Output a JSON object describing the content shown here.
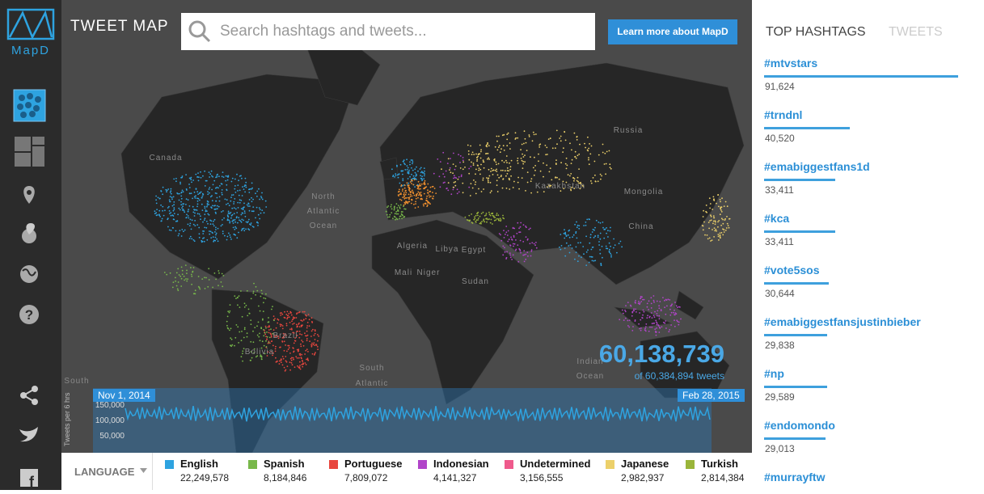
{
  "header": {
    "logo": "MapD",
    "title": "TWEET MAP",
    "search_placeholder": "Search hashtags and tweets...",
    "button": "Learn more about MapD"
  },
  "map_labels": [
    {
      "text": "Canada",
      "x": 205,
      "y": 198
    },
    {
      "text": "North",
      "x": 400,
      "y": 246
    },
    {
      "text": "Atlantic",
      "x": 400,
      "y": 264
    },
    {
      "text": "Ocean",
      "x": 400,
      "y": 282
    },
    {
      "text": "Russia",
      "x": 777,
      "y": 164
    },
    {
      "text": "Kazakhstan",
      "x": 693,
      "y": 233
    },
    {
      "text": "Mongolia",
      "x": 796,
      "y": 240
    },
    {
      "text": "China",
      "x": 793,
      "y": 283
    },
    {
      "text": "Algeria",
      "x": 510,
      "y": 307
    },
    {
      "text": "Libya",
      "x": 553,
      "y": 311
    },
    {
      "text": "Egypt",
      "x": 586,
      "y": 312
    },
    {
      "text": "Mali",
      "x": 499,
      "y": 340
    },
    {
      "text": "Niger",
      "x": 530,
      "y": 340
    },
    {
      "text": "Sudan",
      "x": 588,
      "y": 351
    },
    {
      "text": "Bolivia",
      "x": 321,
      "y": 438
    },
    {
      "text": "Brazil",
      "x": 353,
      "y": 418
    },
    {
      "text": "South",
      "x": 460,
      "y": 458
    },
    {
      "text": "Atlantic",
      "x": 460,
      "y": 477
    },
    {
      "text": "Indian",
      "x": 730,
      "y": 450
    },
    {
      "text": "Ocean",
      "x": 730,
      "y": 468
    },
    {
      "text": "South",
      "x": 95,
      "y": 474
    }
  ],
  "counter": {
    "value": "60,138,739",
    "total": "of 60,384,894 tweets"
  },
  "timeline": {
    "start": "Nov 1, 2014",
    "end": "Feb 28, 2015",
    "axis_label": "Tweets per 6 hrs",
    "yticks": [
      "150,000",
      "100,000",
      "50,000"
    ]
  },
  "language": {
    "label": "LANGUAGE",
    "items": [
      {
        "name": "English",
        "count": "22,249,578",
        "color": "#2ea3e0"
      },
      {
        "name": "Spanish",
        "count": "8,184,846",
        "color": "#78b84a"
      },
      {
        "name": "Portuguese",
        "count": "7,809,072",
        "color": "#e8473f"
      },
      {
        "name": "Indonesian",
        "count": "4,141,327",
        "color": "#b145c9"
      },
      {
        "name": "Undetermined",
        "count": "3,156,555",
        "color": "#ef5a8c"
      },
      {
        "name": "Japanese",
        "count": "2,982,937",
        "color": "#ecd06a"
      },
      {
        "name": "Turkish",
        "count": "2,814,384",
        "color": "#9ab53a"
      }
    ]
  },
  "panel": {
    "tabs": [
      "TOP HASHTAGS",
      "TWEETS"
    ],
    "hashtags": [
      {
        "tag": "#mtvstars",
        "count": {
          "value": 91624,
          "label": "91,624"
        }
      },
      {
        "tag": "#trndnl",
        "count": {
          "value": 40520,
          "label": "40,520"
        }
      },
      {
        "tag": "#emabiggestfans1d",
        "count": {
          "value": 33411,
          "label": "33,411"
        }
      },
      {
        "tag": "#kca",
        "count": {
          "value": 33411,
          "label": "33,411"
        }
      },
      {
        "tag": "#vote5sos",
        "count": {
          "value": 30644,
          "label": "30,644"
        }
      },
      {
        "tag": "#emabiggestfansjustinbieber",
        "count": {
          "value": 29838,
          "label": "29,838"
        }
      },
      {
        "tag": "#np",
        "count": {
          "value": 29589,
          "label": "29,589"
        }
      },
      {
        "tag": "#endomondo",
        "count": {
          "value": 29013,
          "label": "29,013"
        }
      },
      {
        "tag": "#murrayftw"
      }
    ]
  }
}
